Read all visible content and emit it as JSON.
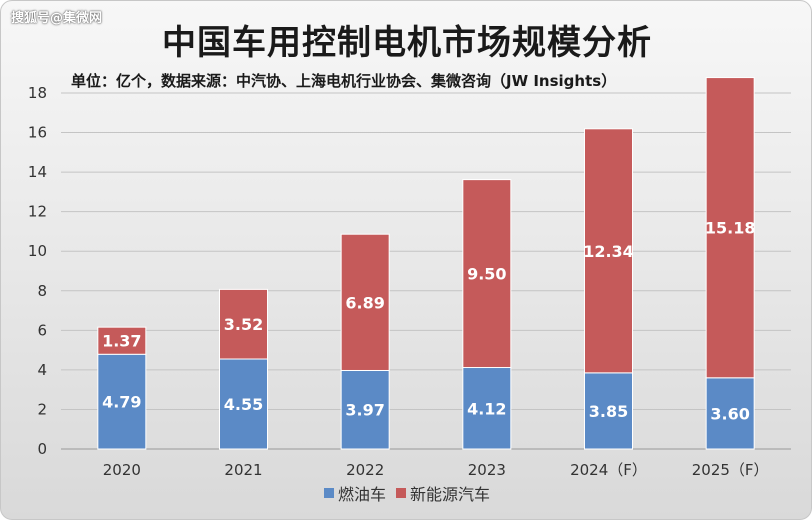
{
  "watermark": "搜狐号@集微网",
  "chart_data": {
    "type": "bar",
    "stacked": true,
    "title": "中国车用控制电机市场规模分析",
    "subtitle": "单位：亿个，数据来源：中汽协、上海电机行业协会、集微咨询（JW Insights）",
    "categories": [
      "2020",
      "2021",
      "2022",
      "2023",
      "2024（F）",
      "2025（F）"
    ],
    "series": [
      {
        "name": "燃油车",
        "color": "#5b8ac6",
        "values": [
          4.79,
          4.55,
          3.97,
          4.12,
          3.85,
          3.6
        ]
      },
      {
        "name": "新能源汽车",
        "color": "#c55a5a",
        "values": [
          1.37,
          3.52,
          6.89,
          9.5,
          12.34,
          15.18
        ]
      }
    ],
    "ylim": [
      0,
      18
    ],
    "yticks": [
      0,
      2,
      4,
      6,
      8,
      10,
      12,
      14,
      16,
      18
    ],
    "grid": true,
    "legend_position": "bottom"
  }
}
